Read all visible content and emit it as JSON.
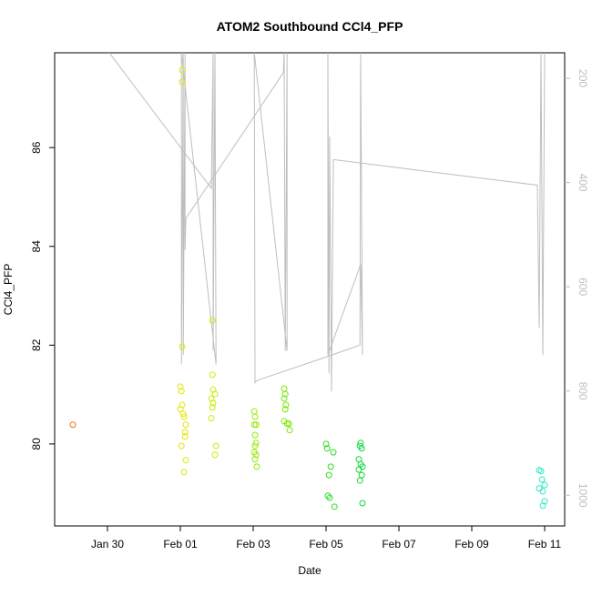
{
  "chart_data": {
    "type": "scatter",
    "title": "ATOM2 Southbound CCl4_PFP",
    "x_label": "Date",
    "y_label": "CCl4_PFP",
    "x": [
      -0.95,
      2.05,
      2.05,
      2.05,
      2.0,
      2.03,
      2.05,
      2.0,
      2.08,
      2.1,
      2.15,
      2.13,
      2.13,
      2.03,
      2.15,
      2.1,
      2.88,
      2.88,
      2.9,
      2.95,
      2.85,
      2.9,
      2.88,
      2.85,
      2.98,
      2.95,
      4.03,
      4.05,
      4.03,
      4.08,
      4.05,
      4.08,
      4.05,
      4.03,
      4.08,
      4.05,
      4.1,
      4.85,
      4.88,
      4.85,
      4.9,
      4.88,
      4.85,
      4.93,
      4.98,
      5.0,
      6.0,
      6.03,
      6.2,
      6.13,
      6.08,
      6.05,
      6.1,
      6.23,
      6.95,
      6.93,
      6.98,
      6.9,
      6.95,
      7.0,
      6.9,
      6.98,
      6.93,
      7.0,
      11.85,
      11.9,
      11.93,
      12.0,
      11.85,
      11.95,
      12.0,
      11.95
    ],
    "values": [
      80.39,
      87.57,
      87.33,
      81.97,
      81.16,
      81.07,
      80.79,
      80.7,
      80.61,
      80.55,
      80.39,
      80.24,
      80.15,
      79.96,
      79.67,
      79.43,
      82.5,
      81.4,
      81.1,
      81.01,
      80.92,
      80.83,
      80.74,
      80.52,
      79.96,
      79.78,
      80.66,
      80.55,
      80.39,
      80.39,
      80.18,
      80.02,
      79.96,
      79.83,
      79.78,
      79.69,
      79.54,
      81.12,
      81.01,
      80.92,
      80.79,
      80.7,
      80.46,
      80.41,
      80.41,
      80.28,
      80.0,
      79.91,
      79.83,
      79.54,
      79.37,
      78.95,
      78.91,
      78.73,
      80.02,
      79.96,
      79.91,
      79.69,
      79.59,
      79.54,
      79.48,
      79.37,
      79.26,
      78.8,
      79.47,
      79.45,
      79.28,
      79.17,
      79.1,
      79.04,
      78.84,
      78.75
    ],
    "colors": [
      "#e07a10",
      "#e2e600",
      "#e2e600",
      "#e2e600",
      "#e2e600",
      "#e2e600",
      "#e2e600",
      "#e2e600",
      "#e2e600",
      "#e2e600",
      "#e2e600",
      "#e2e600",
      "#e2e600",
      "#e2e600",
      "#e2e600",
      "#e2e600",
      "#c8ec00",
      "#c8ec00",
      "#c8ec00",
      "#c8ec00",
      "#c8ec00",
      "#c8ec00",
      "#c8ec00",
      "#c8ec00",
      "#c8ec00",
      "#c8ec00",
      "#96ea00",
      "#96ea00",
      "#96ea00",
      "#96ea00",
      "#96ea00",
      "#96ea00",
      "#96ea00",
      "#96ea00",
      "#96ea00",
      "#96ea00",
      "#96ea00",
      "#74ea00",
      "#74ea00",
      "#74ea00",
      "#74ea00",
      "#74ea00",
      "#74ea00",
      "#74ea00",
      "#74ea00",
      "#74ea00",
      "#30dc20",
      "#30dc20",
      "#30dc20",
      "#30dc20",
      "#30dc20",
      "#30dc20",
      "#30dc20",
      "#30dc20",
      "#10d83c",
      "#10d83c",
      "#10d83c",
      "#10d83c",
      "#10d83c",
      "#10d83c",
      "#10d83c",
      "#10d83c",
      "#10d83c",
      "#10d83c",
      "#30e8c8",
      "#30e8c8",
      "#30e8c8",
      "#30e8c8",
      "#30e8c8",
      "#30e8c8",
      "#30e8c8",
      "#30e8c8"
    ],
    "xlim": [
      -1.45,
      12.55
    ],
    "xticks": [
      {
        "value": 0,
        "label": "Jan 30"
      },
      {
        "value": 2,
        "label": "Feb 01"
      },
      {
        "value": 4,
        "label": "Feb 03"
      },
      {
        "value": 6,
        "label": "Feb 05"
      },
      {
        "value": 8,
        "label": "Feb 07"
      },
      {
        "value": 10,
        "label": "Feb 09"
      },
      {
        "value": 12,
        "label": "Feb 11"
      }
    ],
    "ylim": [
      78.34,
      87.92
    ],
    "yticks": [
      80,
      82,
      84,
      86
    ],
    "y2lim": [
      1059,
      151
    ],
    "y2ticks": [
      200,
      400,
      600,
      800,
      1000
    ],
    "line": {
      "axis": "y2",
      "color": "#bebebe",
      "x": [
        0.05,
        2.85,
        2.9,
        2.9,
        2.95,
        2.98,
        2.03,
        2.03,
        2.08,
        2.08,
        2.13,
        2.13,
        2.15,
        4.83,
        4.85,
        4.88,
        4.93,
        4.93,
        4.03,
        4.05,
        4.1,
        6.0,
        6.93,
        6.95,
        7.0,
        6.95,
        6.05,
        6.05,
        6.08,
        6.1,
        6.15,
        6.2,
        11.8,
        11.85,
        11.9,
        11.95,
        12.0
      ],
      "values": [
        151,
        411,
        151,
        723,
        151,
        749,
        151,
        749,
        151,
        731,
        151,
        530,
        469,
        189,
        151,
        723,
        151,
        723,
        151,
        784,
        780,
        735,
        712,
        151,
        731,
        557,
        731,
        151,
        766,
        312,
        801,
        356,
        405,
        679,
        151,
        731,
        151
      ]
    }
  }
}
